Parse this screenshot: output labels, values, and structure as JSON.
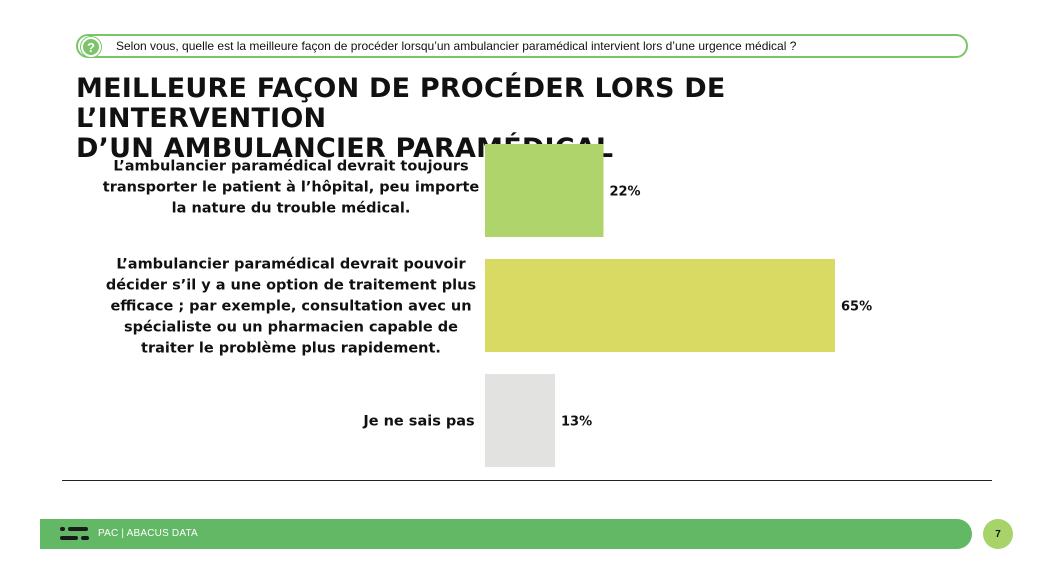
{
  "question": {
    "icon": "question-icon",
    "text": "Selon vous, quelle est la meilleure façon de procéder lorsqu’un ambulancier paramédical intervient lors d’une urgence médical ?"
  },
  "title": {
    "line1": "MEILLEURE FAÇON DE PROCÉDER LORS DE L’INTERVENTION",
    "line2": "D’UN AMBULANCIER PARAMÉDICAL"
  },
  "chart_data": {
    "type": "bar",
    "orientation": "horizontal",
    "title": "MEILLEURE FAÇON DE PROCÉDER LORS DE L’INTERVENTION D’UN AMBULANCIER PARAMÉDICAL",
    "categories": [
      "L’ambulancier paramédical devrait toujours transporter le patient à l’hôpital, peu importe la nature du trouble médical.",
      "L’ambulancier paramédical devrait pouvoir décider s’il y a une option de traitement plus efficace ; par exemple, consultation avec un spécialiste ou un pharmacien capable de traiter le problème plus rapidement.",
      "Je ne sais pas"
    ],
    "category_lines": [
      [
        "L’ambulancier paramédical devrait toujours",
        "transporter le patient à l’hôpital, peu importe",
        "la nature du trouble médical."
      ],
      [
        "L’ambulancier paramédical devrait pouvoir",
        "décider s’il y a une option de traitement plus",
        "efficace ; par exemple, consultation avec un",
        "spécialiste ou un pharmacien capable de",
        "traiter le problème plus rapidement."
      ],
      [
        "Je ne sais pas"
      ]
    ],
    "values": [
      22,
      65,
      13
    ],
    "value_labels": [
      "22%",
      "65%",
      "13%"
    ],
    "colors": [
      "#b0d46c",
      "#d8da64",
      "#e2e3e0"
    ],
    "xlabel": "",
    "ylabel": "",
    "xlim": [
      0,
      100
    ],
    "grid": false
  },
  "footer": {
    "logo": "abacus-logo-icon",
    "text": "PAC | ABACUS DATA",
    "page_number": "7"
  }
}
